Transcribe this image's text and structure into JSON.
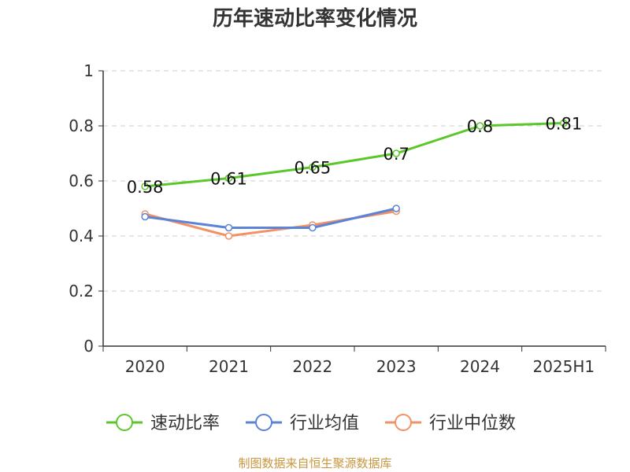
{
  "chart_data": {
    "type": "line",
    "title": "历年速动比率变化情况",
    "categories": [
      "2020",
      "2021",
      "2022",
      "2023",
      "2024",
      "2025H1"
    ],
    "ylim": [
      0,
      1
    ],
    "yticks": [
      "0",
      "0.2",
      "0.4",
      "0.6",
      "0.8",
      "1"
    ],
    "ytick_values": [
      0,
      0.2,
      0.4,
      0.6,
      0.8,
      1
    ],
    "grid": "horizontal-dashed",
    "legend_position": "bottom",
    "series": [
      {
        "name": "速动比率",
        "color": "#5cc72a",
        "values": [
          0.58,
          0.61,
          0.65,
          0.7,
          0.8,
          0.81
        ],
        "labels": [
          "0.58",
          "0.61",
          "0.65",
          "0.7",
          "0.8",
          "0.81"
        ]
      },
      {
        "name": "行业均值",
        "color": "#5b83d6",
        "values": [
          0.47,
          0.43,
          0.43,
          0.5,
          null,
          null
        ]
      },
      {
        "name": "行业中位数",
        "color": "#f39164",
        "values": [
          0.48,
          0.4,
          0.44,
          0.49,
          null,
          null
        ]
      }
    ]
  },
  "source_note": "制图数据来自恒生聚源数据库"
}
